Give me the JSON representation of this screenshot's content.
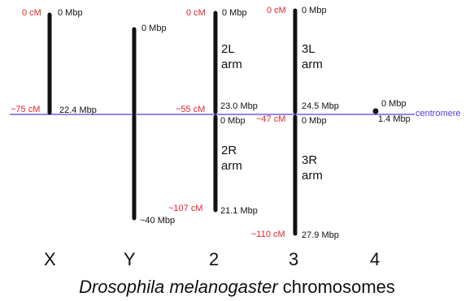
{
  "colors": {
    "red": "#e8232a",
    "blue": "#5140e0",
    "bar": "#111111"
  },
  "title": {
    "italic": "Drosophila melanogaster",
    "plain": "chromosomes"
  },
  "centromere_label": "centromere",
  "chromosomes": {
    "X": {
      "name": "X",
      "top_cM": "0 cM",
      "top_Mbp": "0 Mbp",
      "centromere_cM": "~75 cM",
      "centromere_Mbp": "22.4 Mbp"
    },
    "Y": {
      "name": "Y",
      "top_Mbp": "0 Mbp",
      "bottom_Mbp": "~40 Mbp"
    },
    "c2": {
      "name": "2",
      "top_cM": "0 cM",
      "top_Mbp": "0 Mbp",
      "left_arm": "2L\narm",
      "centromere_cM": "~55 cM",
      "left_end_Mbp": "23.0 Mbp",
      "right_start_Mbp": "0 Mbp",
      "right_arm": "2R\narm",
      "bottom_cM": "~107 cM",
      "bottom_Mbp": "21.1 Mbp"
    },
    "c3": {
      "name": "3",
      "top_cM": "0 cM",
      "top_Mbp": "0 Mbp",
      "left_arm": "3L\narm",
      "centromere_cM": "~47 cM",
      "left_end_Mbp": "24.5 Mbp",
      "right_start_Mbp": "0 Mbp",
      "right_arm": "3R\narm",
      "bottom_cM": "~110 cM",
      "bottom_Mbp": "27.9 Mbp"
    },
    "c4": {
      "name": "4",
      "top_Mbp": "0 Mbp",
      "bottom_Mbp": "1.4 Mbp"
    }
  }
}
